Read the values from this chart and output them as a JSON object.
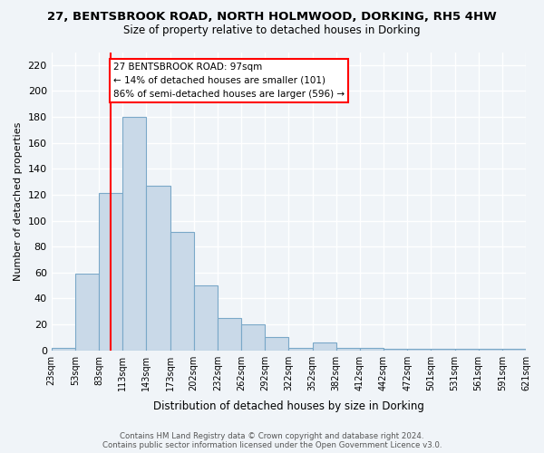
{
  "title_line1": "27, BENTSBROOK ROAD, NORTH HOLMWOOD, DORKING, RH5 4HW",
  "title_line2": "Size of property relative to detached houses in Dorking",
  "xlabel": "Distribution of detached houses by size in Dorking",
  "ylabel": "Number of detached properties",
  "bar_values": [
    2,
    59,
    121,
    180,
    127,
    91,
    50,
    25,
    20,
    10,
    2,
    6,
    2,
    2,
    1,
    1,
    1,
    1,
    1,
    1
  ],
  "bar_labels": [
    "23sqm",
    "53sqm",
    "83sqm",
    "113sqm",
    "143sqm",
    "173sqm",
    "202sqm",
    "232sqm",
    "262sqm",
    "292sqm",
    "322sqm",
    "352sqm",
    "382sqm",
    "412sqm",
    "442sqm",
    "472sqm",
    "501sqm",
    "531sqm",
    "561sqm",
    "591sqm",
    "621sqm"
  ],
  "bar_color": "#c9d9e8",
  "bar_edgecolor": "#7aa8c8",
  "ylim": [
    0,
    230
  ],
  "yticks": [
    0,
    20,
    40,
    60,
    80,
    100,
    120,
    140,
    160,
    180,
    200,
    220
  ],
  "vline_x": 2.5,
  "annotation_text": "27 BENTSBROOK ROAD: 97sqm\n← 14% of detached houses are smaller (101)\n86% of semi-detached houses are larger (596) →",
  "annotation_box_color": "white",
  "annotation_box_edgecolor": "red",
  "vline_color": "red",
  "footer": "Contains HM Land Registry data © Crown copyright and database right 2024.\nContains public sector information licensed under the Open Government Licence v3.0.",
  "background_color": "#f0f4f8",
  "grid_color": "white"
}
